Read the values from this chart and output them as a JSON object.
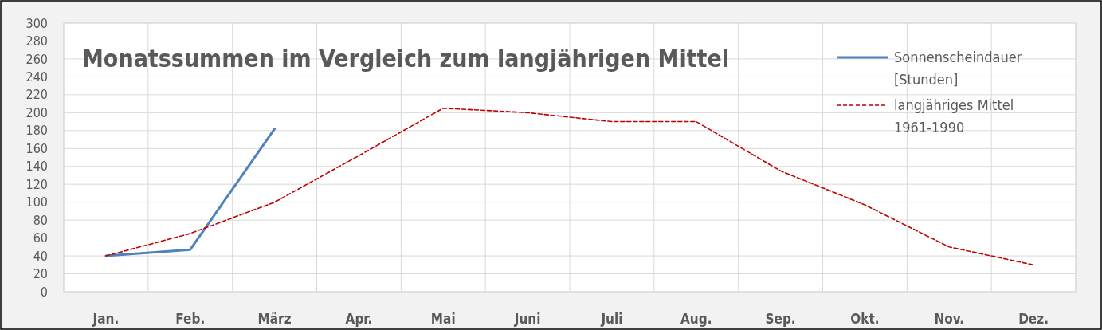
{
  "chart_data": {
    "type": "line",
    "title": "Monatssummen im Vergleich zum langjährigen Mittel",
    "categories": [
      "Jan.",
      "Feb.",
      "März",
      "Apr.",
      "Mai",
      "Juni",
      "Juli",
      "Aug.",
      "Sep.",
      "Okt.",
      "Nov.",
      "Dez."
    ],
    "series": [
      {
        "name": "Sonnenscheindauer [Stunden]",
        "color": "#4f81bd",
        "line_style": "solid",
        "values": [
          40,
          47,
          182,
          null,
          null,
          null,
          null,
          null,
          null,
          null,
          null,
          null
        ]
      },
      {
        "name": "langjähriges Mittel 1961-1990",
        "color": "#c00000",
        "line_style": "dashed",
        "values": [
          40,
          65,
          100,
          152,
          205,
          200,
          190,
          190,
          135,
          97,
          50,
          30
        ]
      }
    ],
    "ylim": [
      0,
      300
    ],
    "yticks": [
      0,
      20,
      40,
      60,
      80,
      100,
      120,
      140,
      160,
      180,
      200,
      220,
      240,
      260,
      280,
      300
    ],
    "grid": true,
    "legend": "top right",
    "marker": "none"
  }
}
